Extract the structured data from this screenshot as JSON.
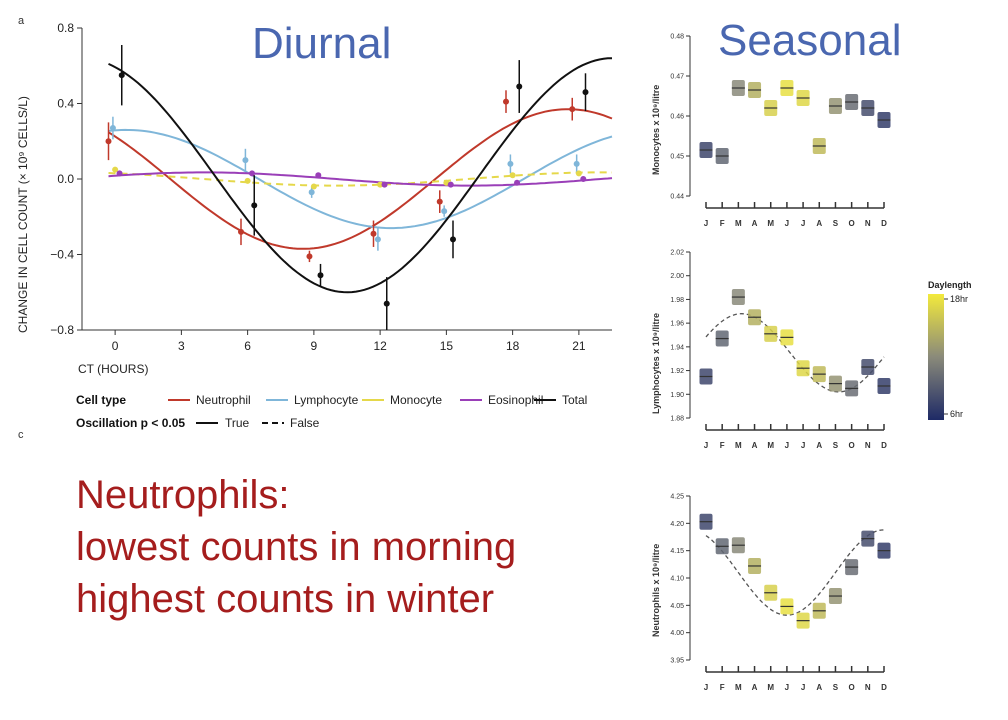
{
  "diurnal_title": "Diurnal",
  "seasonal_title": "Seasonal",
  "summary": {
    "line1": "Neutrophils:",
    "line2": "lowest counts in morning",
    "line3": "highest counts in winter"
  },
  "panel_marks": {
    "top": "a",
    "bottom": "c"
  },
  "legend": {
    "cell_type_label": "Cell type",
    "oscillation_label": "Oscillation p < 0.05",
    "true_label": "True",
    "false_label": "False"
  },
  "colorbar": {
    "title": "Daylength",
    "max_label": "18hr",
    "min_label": "6hr"
  },
  "colors": {
    "neutrophil": "#c0392b",
    "lymphocyte": "#7fb6d9",
    "monocyte": "#e5d84a",
    "eosinophil": "#9a3fb8",
    "total": "#111111",
    "title_blue": "#4a67b0",
    "summary_red": "#a51d1d"
  },
  "chart_data": [
    {
      "type": "line",
      "title": "",
      "xlabel": "CT (HOURS)",
      "ylabel": "CHANGE IN CELL COUNT (× 10⁹ CELLS/L)",
      "xlim": [
        -1.5,
        22.5
      ],
      "ylim": [
        -0.8,
        0.8
      ],
      "x_ticks": [
        0,
        3,
        6,
        9,
        12,
        15,
        18,
        21
      ],
      "y_ticks": [
        -0.8,
        -0.4,
        0.0,
        0.4,
        0.8
      ],
      "y_tick_labels": [
        "−0.8",
        "−0.4",
        "0.0",
        "0.4",
        "0.8"
      ],
      "series": [
        {
          "name": "Neutrophil",
          "color_key": "neutrophil",
          "oscillation": true,
          "curve": {
            "mean": 0.0,
            "amp": 0.37,
            "peak": 20.5
          },
          "points": [
            {
              "x": -0.3,
              "y": 0.2,
              "e": 0.1
            },
            {
              "x": 5.7,
              "y": -0.28,
              "e": 0.07
            },
            {
              "x": 8.8,
              "y": -0.41,
              "e": 0.03
            },
            {
              "x": 11.7,
              "y": -0.29,
              "e": 0.07
            },
            {
              "x": 14.7,
              "y": -0.12,
              "e": 0.06
            },
            {
              "x": 17.7,
              "y": 0.41,
              "e": 0.06
            },
            {
              "x": 20.7,
              "y": 0.37,
              "e": 0.06
            }
          ]
        },
        {
          "name": "Lymphocyte",
          "color_key": "lymphocyte",
          "oscillation": true,
          "curve": {
            "mean": 0.0,
            "amp": 0.26,
            "peak": 0.5
          },
          "points": [
            {
              "x": -0.1,
              "y": 0.27,
              "e": 0.06
            },
            {
              "x": 5.9,
              "y": 0.1,
              "e": 0.06
            },
            {
              "x": 8.9,
              "y": -0.07,
              "e": 0.03
            },
            {
              "x": 11.9,
              "y": -0.32,
              "e": 0.06
            },
            {
              "x": 14.9,
              "y": -0.17,
              "e": 0.03
            },
            {
              "x": 17.9,
              "y": 0.08,
              "e": 0.05
            },
            {
              "x": 20.9,
              "y": 0.08,
              "e": 0.05
            }
          ]
        },
        {
          "name": "Monocyte",
          "color_key": "monocyte",
          "oscillation": false,
          "curve": {
            "mean": 0.0,
            "amp": 0.035,
            "peak": 22.0
          },
          "points": [
            {
              "x": 0.0,
              "y": 0.05,
              "e": 0.0
            },
            {
              "x": 6.0,
              "y": -0.01,
              "e": 0.0
            },
            {
              "x": 9.0,
              "y": -0.04,
              "e": 0.0
            },
            {
              "x": 12.0,
              "y": -0.03,
              "e": 0.0
            },
            {
              "x": 15.0,
              "y": -0.02,
              "e": 0.0
            },
            {
              "x": 18.0,
              "y": 0.02,
              "e": 0.0
            },
            {
              "x": 21.0,
              "y": 0.03,
              "e": 0.0
            }
          ]
        },
        {
          "name": "Eosinophil",
          "color_key": "eosinophil",
          "oscillation": true,
          "curve": {
            "mean": 0.0,
            "amp": 0.035,
            "peak": 4.0
          },
          "points": [
            {
              "x": 0.2,
              "y": 0.03,
              "e": 0.0
            },
            {
              "x": 6.2,
              "y": 0.03,
              "e": 0.0
            },
            {
              "x": 9.2,
              "y": 0.02,
              "e": 0.0
            },
            {
              "x": 12.2,
              "y": -0.03,
              "e": 0.0
            },
            {
              "x": 15.2,
              "y": -0.03,
              "e": 0.0
            },
            {
              "x": 18.2,
              "y": -0.02,
              "e": 0.0
            },
            {
              "x": 21.2,
              "y": 0.0,
              "e": 0.0
            }
          ]
        },
        {
          "name": "Total",
          "color_key": "total",
          "oscillation": true,
          "curve": {
            "mean": 0.02,
            "amp": 0.62,
            "peak": 22.5
          },
          "points": [
            {
              "x": 0.3,
              "y": 0.55,
              "e": 0.16
            },
            {
              "x": 6.3,
              "y": -0.14,
              "e": 0.16
            },
            {
              "x": 9.3,
              "y": -0.51,
              "e": 0.06
            },
            {
              "x": 12.3,
              "y": -0.66,
              "e": 0.14
            },
            {
              "x": 15.3,
              "y": -0.32,
              "e": 0.1
            },
            {
              "x": 18.3,
              "y": 0.49,
              "e": 0.14
            },
            {
              "x": 21.3,
              "y": 0.46,
              "e": 0.1
            }
          ]
        }
      ]
    },
    {
      "type": "scatter",
      "title": "",
      "ylabel": "Monocytes x 10⁹/litre",
      "categories": [
        "J",
        "F",
        "M",
        "A",
        "M",
        "J",
        "J",
        "A",
        "S",
        "O",
        "N",
        "D"
      ],
      "ylim": [
        0.44,
        0.48
      ],
      "y_ticks": [
        0.44,
        0.45,
        0.46,
        0.47,
        0.48
      ],
      "y_tick_labels": [
        "0.44",
        "0.45",
        "0.46",
        "0.47",
        "0.48"
      ],
      "values": [
        0.4515,
        0.45,
        0.467,
        0.4665,
        0.462,
        0.467,
        0.4645,
        0.4525,
        0.4625,
        0.4635,
        0.462,
        0.459
      ],
      "daylength": [
        7.8,
        9.8,
        12.0,
        14.4,
        16.4,
        17.3,
        16.8,
        15.0,
        12.6,
        10.2,
        8.2,
        7.2
      ],
      "fit_curve": false
    },
    {
      "type": "scatter",
      "title": "",
      "ylabel": "Lymphocytes x 10⁹/litre",
      "categories": [
        "J",
        "F",
        "M",
        "A",
        "M",
        "J",
        "J",
        "A",
        "S",
        "O",
        "N",
        "D"
      ],
      "ylim": [
        1.88,
        2.02
      ],
      "y_ticks": [
        1.88,
        1.9,
        1.92,
        1.94,
        1.96,
        1.98,
        2.0,
        2.02
      ],
      "y_tick_labels": [
        "1.88",
        "1.90",
        "1.92",
        "1.94",
        "1.96",
        "1.98",
        "2.00",
        "2.02"
      ],
      "values": [
        1.915,
        1.947,
        1.982,
        1.965,
        1.951,
        1.948,
        1.922,
        1.917,
        1.909,
        1.905,
        1.923,
        1.907
      ],
      "daylength": [
        7.8,
        9.8,
        12.0,
        14.4,
        16.4,
        17.3,
        16.8,
        15.0,
        12.6,
        10.2,
        8.2,
        7.2
      ],
      "fit_curve": true,
      "fit": {
        "mean": 1.935,
        "amp": 0.033,
        "peak_month": 3.2
      }
    },
    {
      "type": "scatter",
      "title": "",
      "ylabel": "Neutrophils x 10⁹/litre",
      "categories": [
        "J",
        "F",
        "M",
        "A",
        "M",
        "J",
        "J",
        "A",
        "S",
        "O",
        "N",
        "D"
      ],
      "ylim": [
        3.95,
        4.25
      ],
      "y_ticks": [
        3.95,
        4.0,
        4.05,
        4.1,
        4.15,
        4.2,
        4.25
      ],
      "y_tick_labels": [
        "3.95",
        "4.00",
        "4.05",
        "4.10",
        "4.15",
        "4.20",
        "4.25"
      ],
      "values": [
        4.203,
        4.158,
        4.16,
        4.122,
        4.073,
        4.048,
        4.022,
        4.04,
        4.067,
        4.12,
        4.172,
        4.15
      ],
      "daylength": [
        7.8,
        9.8,
        12.0,
        14.4,
        16.4,
        17.3,
        16.8,
        15.0,
        12.6,
        10.2,
        8.2,
        7.2
      ],
      "fit_curve": true,
      "fit": {
        "mean": 4.11,
        "amp": 0.078,
        "peak_month": 12.0
      }
    }
  ]
}
